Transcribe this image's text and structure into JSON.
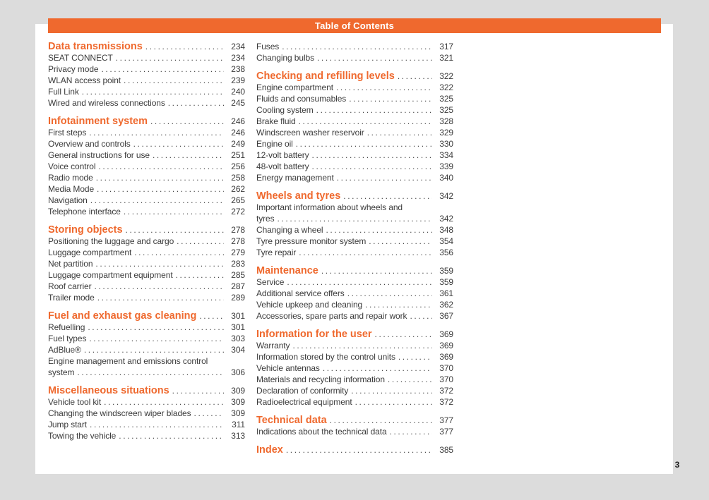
{
  "header": {
    "title": "Table of Contents"
  },
  "page_number": "3",
  "colors": {
    "accent": "#ef692e",
    "canvas_background": "#dcdcdc",
    "page_background": "#ffffff",
    "text": "#3b3b3b"
  },
  "columns": [
    {
      "sections": [
        {
          "title": "Data transmissions",
          "page": "234",
          "entries": [
            {
              "label": "SEAT CONNECT",
              "page": "234"
            },
            {
              "label": "Privacy mode",
              "page": "238"
            },
            {
              "label": "WLAN access point",
              "page": "239"
            },
            {
              "label": "Full Link",
              "page": "240"
            },
            {
              "label": "Wired and wireless connections",
              "page": "245"
            }
          ]
        },
        {
          "title": "Infotainment system",
          "page": "246",
          "entries": [
            {
              "label": "First steps",
              "page": "246"
            },
            {
              "label": "Overview and controls",
              "page": "249"
            },
            {
              "label": "General instructions for use",
              "page": "251"
            },
            {
              "label": "Voice control",
              "page": "256"
            },
            {
              "label": "Radio mode",
              "page": "258"
            },
            {
              "label": "Media Mode",
              "page": "262"
            },
            {
              "label": "Navigation",
              "page": "265"
            },
            {
              "label": "Telephone interface",
              "page": "272"
            }
          ]
        },
        {
          "title": "Storing objects",
          "page": "278",
          "entries": [
            {
              "label": "Positioning the luggage and cargo",
              "page": "278"
            },
            {
              "label": "Luggage compartment",
              "page": "279"
            },
            {
              "label": "Net partition",
              "page": "283"
            },
            {
              "label": "Luggage compartment equipment",
              "page": "285"
            },
            {
              "label": "Roof carrier",
              "page": "287"
            },
            {
              "label": "Trailer mode",
              "page": "289"
            }
          ]
        },
        {
          "title": "Fuel and exhaust gas cleaning",
          "page": "301",
          "entries": [
            {
              "label": "Refuelling",
              "page": "301"
            },
            {
              "label": "Fuel types",
              "page": "303"
            },
            {
              "label": "AdBlue®",
              "page": "304"
            },
            {
              "label": "Engine management and emissions control",
              "label2": "system",
              "page": "306"
            }
          ]
        },
        {
          "title": "Miscellaneous situations",
          "page": "309",
          "entries": [
            {
              "label": "Vehicle tool kit",
              "page": "309"
            },
            {
              "label": "Changing the windscreen wiper blades",
              "page": "309"
            },
            {
              "label": "Jump start",
              "page": "311"
            },
            {
              "label": "Towing the vehicle",
              "page": "313"
            }
          ]
        }
      ]
    },
    {
      "sections": [
        {
          "title": null,
          "page": null,
          "entries": [
            {
              "label": "Fuses",
              "page": "317"
            },
            {
              "label": "Changing bulbs",
              "page": "321"
            }
          ]
        },
        {
          "title": "Checking and refilling levels",
          "page": "322",
          "entries": [
            {
              "label": "Engine compartment",
              "page": "322"
            },
            {
              "label": "Fluids and consumables",
              "page": "325"
            },
            {
              "label": "Cooling system",
              "page": "325"
            },
            {
              "label": "Brake fluid",
              "page": "328"
            },
            {
              "label": "Windscreen washer reservoir",
              "page": "329"
            },
            {
              "label": "Engine oil",
              "page": "330"
            },
            {
              "label": "12-volt battery",
              "page": "334"
            },
            {
              "label": "48-volt battery",
              "page": "339"
            },
            {
              "label": "Energy management",
              "page": "340"
            }
          ]
        },
        {
          "title": "Wheels and tyres",
          "page": "342",
          "entries": [
            {
              "label": "Important information about wheels and",
              "label2": "tyres",
              "page": "342"
            },
            {
              "label": "Changing a wheel",
              "page": "348"
            },
            {
              "label": "Tyre pressure monitor system",
              "page": "354"
            },
            {
              "label": "Tyre repair",
              "page": "356"
            }
          ]
        },
        {
          "title": "Maintenance",
          "page": "359",
          "entries": [
            {
              "label": "Service",
              "page": "359"
            },
            {
              "label": "Additional service offers",
              "page": "361"
            },
            {
              "label": "Vehicle upkeep and cleaning",
              "page": "362"
            },
            {
              "label": "Accessories, spare parts and repair work",
              "page": "367"
            }
          ]
        },
        {
          "title": "Information for the user",
          "page": "369",
          "entries": [
            {
              "label": "Warranty",
              "page": "369"
            },
            {
              "label": "Information stored by the control units",
              "page": "369"
            },
            {
              "label": "Vehicle antennas",
              "page": "370"
            },
            {
              "label": "Materials and recycling information",
              "page": "370"
            },
            {
              "label": "Declaration of conformity",
              "page": "372"
            },
            {
              "label": "Radioelectrical equipment",
              "page": "372"
            }
          ]
        },
        {
          "title": "Technical data",
          "page": "377",
          "entries": [
            {
              "label": "Indications about the technical data",
              "page": "377"
            }
          ]
        },
        {
          "title": "Index",
          "page": "385",
          "entries": []
        }
      ]
    }
  ]
}
